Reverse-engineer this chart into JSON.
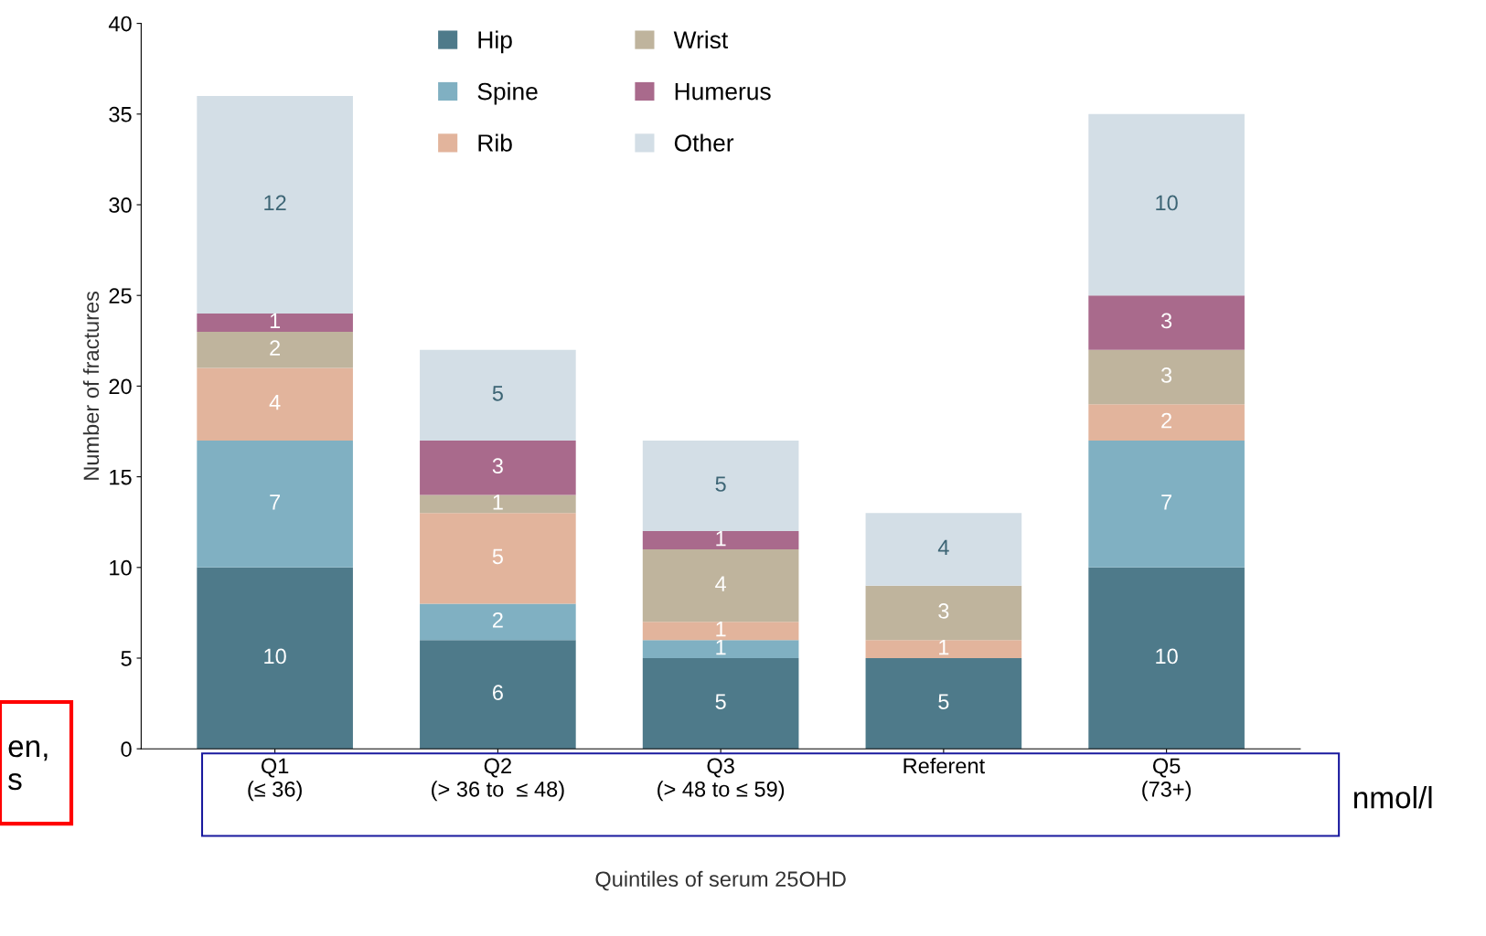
{
  "chart_data": {
    "type": "bar",
    "stacked": true,
    "xlabel": "Quintiles of serum 25OHD",
    "ylabel": "Number of fractures",
    "categories": [
      "Q1\n(≤ 36)",
      "Q2\n(> 36 to  ≤ 48)",
      "Q3\n(> 48 to ≤ 59)",
      "Referent",
      "Q5\n(73+)"
    ],
    "series": [
      {
        "name": "Hip",
        "color": "#4e7a8a",
        "values": [
          10,
          6,
          5,
          5,
          10
        ],
        "value_labels": [
          "10",
          "6",
          "5",
          "5",
          "10"
        ]
      },
      {
        "name": "Spine",
        "color": "#80b0c2",
        "values": [
          7,
          2,
          1,
          0,
          7
        ],
        "value_labels": [
          "7",
          "2",
          "1",
          null,
          "7"
        ]
      },
      {
        "name": "Rib",
        "color": "#e2b49c",
        "values": [
          4,
          5,
          1,
          1,
          2
        ],
        "value_labels": [
          "4",
          "5",
          "1",
          "1",
          "2"
        ]
      },
      {
        "name": "Wrist",
        "color": "#bfb49d",
        "values": [
          2,
          1,
          4,
          3,
          3
        ],
        "value_labels": [
          "2",
          "1",
          "4",
          "3",
          "3"
        ]
      },
      {
        "name": "Humerus",
        "color": "#a96a8c",
        "values": [
          1,
          3,
          1,
          0,
          3
        ],
        "value_labels": [
          "1",
          "3",
          "1",
          null,
          "3"
        ]
      },
      {
        "name": "Other",
        "color": "#d3dee6",
        "values": [
          12,
          5,
          5,
          4,
          10
        ],
        "value_labels": [
          "12",
          "5",
          "5",
          "4",
          "10"
        ]
      }
    ],
    "ylim": [
      0,
      40
    ],
    "yticks": [
      0,
      5,
      10,
      15,
      20,
      25,
      30,
      35,
      40
    ],
    "grid": false,
    "legend": "top",
    "annotations": [
      "nmol/l",
      "en,\ns"
    ]
  }
}
